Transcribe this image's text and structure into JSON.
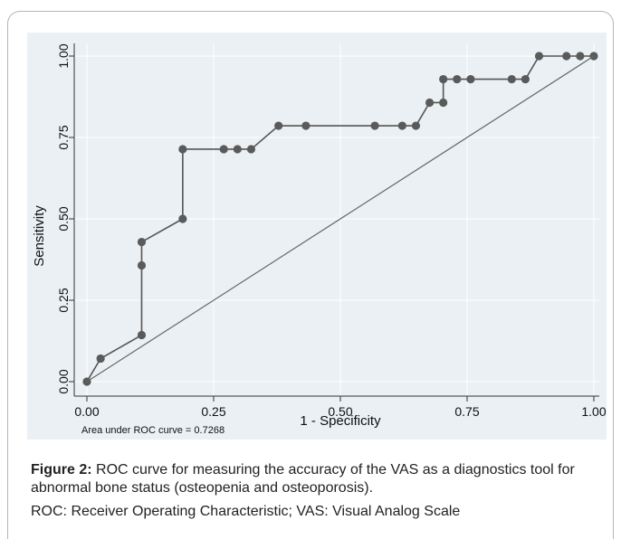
{
  "chart_data": {
    "type": "line",
    "xlabel": "1 - Specificity",
    "ylabel": "Sensitivity",
    "xlim": [
      0,
      1
    ],
    "ylim": [
      0,
      1
    ],
    "xticks": [
      "0.00",
      "0.25",
      "0.50",
      "0.75",
      "1.00"
    ],
    "yticks": [
      "0.00",
      "0.25",
      "0.50",
      "0.75",
      "1.00"
    ],
    "grid": true,
    "annotation": "Area under ROC curve = 0.7268",
    "series": [
      {
        "points": [
          [
            0.0,
            0.0
          ],
          [
            0.027,
            0.071
          ],
          [
            0.108,
            0.143
          ],
          [
            0.108,
            0.357
          ],
          [
            0.108,
            0.429
          ],
          [
            0.189,
            0.5
          ],
          [
            0.189,
            0.714
          ],
          [
            0.27,
            0.714
          ],
          [
            0.297,
            0.714
          ],
          [
            0.324,
            0.714
          ],
          [
            0.378,
            0.786
          ],
          [
            0.432,
            0.786
          ],
          [
            0.568,
            0.786
          ],
          [
            0.622,
            0.786
          ],
          [
            0.649,
            0.786
          ],
          [
            0.676,
            0.857
          ],
          [
            0.703,
            0.857
          ],
          [
            0.703,
            0.929
          ],
          [
            0.73,
            0.929
          ],
          [
            0.757,
            0.929
          ],
          [
            0.838,
            0.929
          ],
          [
            0.865,
            0.929
          ],
          [
            0.892,
            1.0
          ],
          [
            0.946,
            1.0
          ],
          [
            0.973,
            1.0
          ],
          [
            1.0,
            1.0
          ]
        ]
      },
      {
        "reference_line": true,
        "points": [
          [
            0,
            0
          ],
          [
            1,
            1
          ]
        ]
      }
    ]
  },
  "caption": {
    "label": "Figure 2:",
    "text": " ROC curve for measuring the accuracy of the VAS as a diagnostics tool for abnormal bone status (osteopenia and osteoporosis).",
    "abbreviations": "ROC: Receiver Operating Characteristic; VAS: Visual Analog Scale"
  },
  "colors": {
    "plot_background": "#eaf0f4",
    "outer_background": "#ffffff",
    "grid": "#ffffff",
    "curve": "#555555",
    "marker": "#5a5a5a",
    "reference": "#666666"
  }
}
